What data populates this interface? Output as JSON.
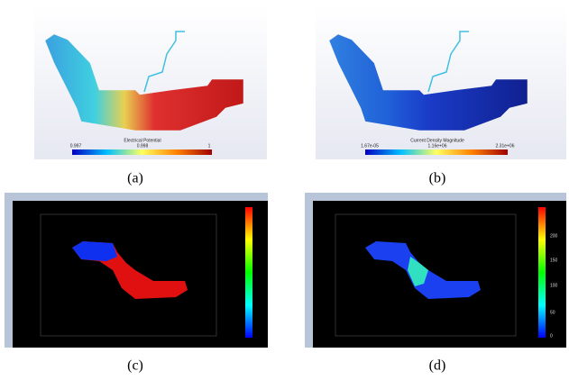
{
  "panels": [
    {
      "caption": "(a)",
      "colorbar": {
        "title": "Electrical Potential",
        "ticks": [
          "0.997",
          "0.998",
          "1"
        ]
      }
    },
    {
      "caption": "(b)",
      "colorbar": {
        "title": "Current Density Magnitude",
        "ticks": [
          "1.67e-05",
          "1.16e+06",
          "2.31e+06"
        ]
      }
    },
    {
      "caption": "(c)"
    },
    {
      "caption": "(d)",
      "colorbar": {
        "ticks": [
          "200",
          "150",
          "100",
          "50",
          "0"
        ]
      }
    }
  ]
}
